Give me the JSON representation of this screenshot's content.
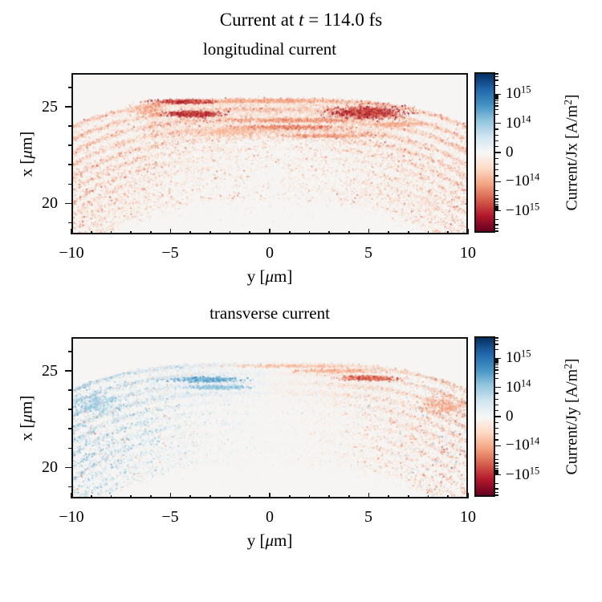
{
  "figure": {
    "suptitle": {
      "pre": "Current at ",
      "it": "t",
      "post": " = 114.0 fs"
    }
  },
  "colormap": {
    "name": "RdBu",
    "zero_bg": "#f6f5f3",
    "red_ramp": [
      "#f7f7f7",
      "#fddbc7",
      "#f4a582",
      "#d6604d",
      "#b2182b",
      "#67001f"
    ],
    "blue_ramp": [
      "#f7f7f7",
      "#d1e5f0",
      "#92c5de",
      "#4393c3",
      "#2166ac",
      "#053061"
    ],
    "bar_stops": [
      "#053061",
      "#2166ac",
      "#4393c3",
      "#92c5de",
      "#d1e5f0",
      "#f7f7f7",
      "#fddbc7",
      "#f4a582",
      "#d6604d",
      "#b2182b",
      "#67001f"
    ]
  },
  "panels": [
    {
      "title": "longitudinal current",
      "xlabel": {
        "pre": "y [",
        "mu": "μ",
        "post": "m]"
      },
      "ylabel": {
        "pre": "x [",
        "mu": "μ",
        "post": "m]"
      },
      "xtick_labels": [
        "−10",
        "−5",
        "0",
        "5",
        "10"
      ],
      "ytick_labels": [
        "25",
        "20"
      ],
      "colorbar": {
        "tick_labels": [
          {
            "base": "10",
            "exp": "15"
          },
          {
            "base": "10",
            "exp": "14"
          },
          {
            "base": "0",
            "exp": ""
          },
          {
            "base": "−10",
            "exp": "14"
          },
          {
            "base": "−10",
            "exp": "15"
          }
        ],
        "label": {
          "pre": "Current/Jx [A/m",
          "sup": "2",
          "post": "]"
        }
      }
    },
    {
      "title": "transverse current",
      "xlabel": {
        "pre": "y [",
        "mu": "μ",
        "post": "m]"
      },
      "ylabel": {
        "pre": "x [",
        "mu": "μ",
        "post": "m]"
      },
      "xtick_labels": [
        "−10",
        "−5",
        "0",
        "5",
        "10"
      ],
      "ytick_labels": [
        "25",
        "20"
      ],
      "colorbar": {
        "tick_labels": [
          {
            "base": "10",
            "exp": "15"
          },
          {
            "base": "10",
            "exp": "14"
          },
          {
            "base": "0",
            "exp": ""
          },
          {
            "base": "−10",
            "exp": "14"
          },
          {
            "base": "−10",
            "exp": "15"
          }
        ],
        "label": {
          "pre": "Current/Jy [A/m",
          "sup": "2",
          "post": "]"
        }
      }
    }
  ],
  "chart_data": [
    {
      "type": "scatter",
      "title": "longitudinal current",
      "suptitle": "Current at t = 114.0 fs",
      "xlabel": "y [um]",
      "ylabel": "x [um]",
      "xlim": [
        -10,
        10
      ],
      "ylim": [
        18.4,
        26.75
      ],
      "xticks": [
        -10,
        -5,
        0,
        5,
        10
      ],
      "xtick_minor_step": 1,
      "yticks": [
        25,
        20
      ],
      "ytick_minors": [
        26,
        24,
        23,
        22,
        21,
        19
      ],
      "grid": false,
      "colorbar": {
        "label": "Current/Jx [A/m^2]",
        "scale": "symlog",
        "linthresh": 100000000000000.0,
        "vmin": -5000000000000000.0,
        "vmax": 5000000000000000.0,
        "major_ticks": [
          1000000000000000.0,
          100000000000000.0,
          0,
          -100000000000000.0,
          -1000000000000000.0
        ],
        "cmap": "RdBu"
      },
      "description": "Plasma-wakefield longitudinal current density Jx: nested downward-curving arc shells (apex near x=25.3 um at y=0, spacing ~0.5 um), almost entirely negative (red), densest dark-red crest between y=-6 and 6, x=23.4-25.4 um",
      "render": {
        "seed": 20240114,
        "arc": {
          "count": 11,
          "apex_start": 25.35,
          "apex_step": 0.5,
          "drop_base": 1.4,
          "drop_step": 0.16,
          "exponent": 3.2,
          "sigma_base": 0.055,
          "sigma_step": 0.009,
          "points_base": 3000,
          "points_decay": 0.055,
          "flank_start": 4,
          "halo_prob": 0.36,
          "halo_scale": 0.3
        },
        "cap": {
          "hmax": 6.2,
          "vmin": 23.35,
          "n": 8500,
          "tmax": 0.42
        },
        "noise": {
          "n": 2600,
          "tmax": 0.4
        },
        "intensity": {
          "base_max": 0.5,
          "edge_boost": 0.3,
          "center_boost": 0.2,
          "center_h": 6,
          "center_arcs": 5
        },
        "signed": false,
        "blobs": [
          {
            "h": -4.3,
            "v": 25.27,
            "w": 1.5,
            "ht": 0.1,
            "n": 800,
            "t": 0.9
          },
          {
            "h": -0.2,
            "v": 25.3,
            "w": 3.4,
            "ht": 0.08,
            "n": 600,
            "t": 0.5
          },
          {
            "h": -3.9,
            "v": 24.62,
            "w": 1.25,
            "ht": 0.14,
            "n": 1000,
            "t": 0.95
          },
          {
            "h": 4.9,
            "v": 24.7,
            "w": 1.7,
            "ht": 0.3,
            "n": 1500,
            "t": 0.92
          },
          {
            "h": 1.2,
            "v": 24.3,
            "w": 3.2,
            "ht": 0.1,
            "n": 550,
            "t": 0.55
          },
          {
            "h": 0.8,
            "v": 23.95,
            "w": 2.6,
            "ht": 0.1,
            "n": 650,
            "t": 0.65
          },
          {
            "h": 2.8,
            "v": 23.5,
            "w": 2.2,
            "ht": 0.09,
            "n": 450,
            "t": 0.55
          },
          {
            "h": -2.0,
            "v": 23.72,
            "w": 2.0,
            "ht": 0.22,
            "n": 600,
            "t": 0.4
          },
          {
            "h": -6.1,
            "v": 24.85,
            "w": 0.8,
            "ht": 0.35,
            "n": 300,
            "t": 0.5
          },
          {
            "h": 6.6,
            "v": 24.1,
            "w": 1.1,
            "ht": 0.12,
            "n": 300,
            "t": 0.5
          }
        ]
      }
    },
    {
      "type": "scatter",
      "title": "transverse current",
      "xlabel": "y [um]",
      "ylabel": "x [um]",
      "xlim": [
        -10,
        10
      ],
      "ylim": [
        18.4,
        26.75
      ],
      "xticks": [
        -10,
        -5,
        0,
        5,
        10
      ],
      "xtick_minor_step": 1,
      "yticks": [
        25,
        20
      ],
      "ytick_minors": [
        26,
        24,
        23,
        22,
        21,
        19
      ],
      "grid": false,
      "colorbar": {
        "label": "Current/Jy [A/m^2]",
        "scale": "symlog",
        "linthresh": 100000000000000.0,
        "vmin": -5000000000000000.0,
        "vmax": 5000000000000000.0,
        "major_ticks": [
          1000000000000000.0,
          100000000000000.0,
          0,
          -100000000000000.0,
          -1000000000000000.0
        ],
        "cmap": "RdBu"
      },
      "description": "Transverse current density Jy on the same arc shells: antisymmetric about y=0 - positive (blue) for y<0, negative (red/orange) for y>0, faint interleaved streaks near the axis, strongest at the flanks",
      "render": {
        "seed": 7771140,
        "arc": {
          "count": 11,
          "apex_start": 25.35,
          "apex_step": 0.5,
          "drop_base": 1.4,
          "drop_step": 0.16,
          "exponent": 3.2,
          "sigma_base": 0.055,
          "sigma_step": 0.009,
          "points_base": 2300,
          "points_decay": 0.05,
          "flank_start": 4,
          "halo_prob": 0.3,
          "halo_scale": 0.3
        },
        "cap": {
          "hmax": 6.2,
          "vmin": 23.4,
          "n": 4200,
          "tmax": 0.3
        },
        "noise": {
          "n": 2000,
          "tmax": 0.32
        },
        "intensity": {
          "base_max": 0.42,
          "edge_boost": 0.4,
          "center_boost": 0,
          "center_h": 0,
          "center_arcs": 0
        },
        "signed": true,
        "flip_prob": 0.13,
        "side_min": 0.3,
        "side_ramp": 5,
        "blobs": [
          {
            "h": -3.2,
            "v": 24.55,
            "w": 1.6,
            "ht": 0.12,
            "n": 600,
            "t": 0.65,
            "side": -1
          },
          {
            "h": -2.6,
            "v": 24.15,
            "w": 1.4,
            "ht": 0.1,
            "n": 450,
            "t": 0.5,
            "side": -1
          },
          {
            "h": 4.9,
            "v": 24.62,
            "w": 1.3,
            "ht": 0.12,
            "n": 650,
            "t": 0.75,
            "side": 1
          },
          {
            "h": 3.4,
            "v": 25.0,
            "w": 2.2,
            "ht": 0.09,
            "n": 400,
            "t": 0.45,
            "side": 1
          },
          {
            "h": 1.0,
            "v": 25.25,
            "w": 3.0,
            "ht": 0.08,
            "n": 350,
            "t": 0.4,
            "side": 1
          },
          {
            "h": -8.8,
            "v": 23.3,
            "w": 1.3,
            "ht": 0.5,
            "n": 500,
            "t": 0.45,
            "side": -1
          },
          {
            "h": 8.8,
            "v": 23.2,
            "w": 1.3,
            "ht": 0.5,
            "n": 500,
            "t": 0.5,
            "side": 1
          }
        ]
      }
    }
  ]
}
